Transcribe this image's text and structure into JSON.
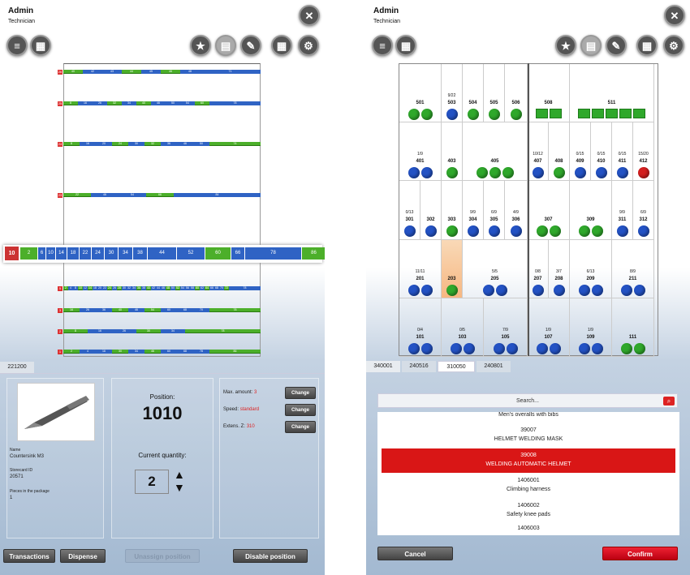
{
  "left": {
    "user": {
      "name": "Admin",
      "role": "Technician"
    },
    "shelf_labels": [
      "26",
      "25",
      "24",
      "23",
      "5",
      "3",
      "2",
      "1"
    ],
    "shelves": [
      {
        "level": "26",
        "segs": [
          "40",
          "42",
          "43",
          "44",
          "45",
          "46",
          "48",
          "71"
        ]
      },
      {
        "level": "25",
        "segs": [
          "8",
          "16",
          "26",
          "32",
          "34",
          "40",
          "46",
          "50",
          "54",
          "60",
          "78"
        ]
      },
      {
        "level": "24",
        "segs": [
          "8",
          "16",
          "20",
          "24",
          "30",
          "32",
          "36",
          "46",
          "50",
          "74"
        ]
      },
      {
        "level": "23",
        "segs": [
          "22",
          "46",
          "54",
          "66",
          "84"
        ]
      },
      {
        "level": "5",
        "segs": [
          "2",
          "4",
          "8",
          "10",
          "12",
          "14",
          "18",
          "20",
          "22",
          "24",
          "26",
          "28",
          "30",
          "32",
          "34",
          "36",
          "38",
          "40",
          "42",
          "44",
          "46",
          "48",
          "50",
          "52",
          "54",
          "56",
          "58",
          "60",
          "62",
          "64",
          "66",
          "68",
          "70",
          "72",
          "78"
        ]
      },
      {
        "level": "3",
        "segs": [
          "16",
          "26",
          "36",
          "40",
          "46",
          "54",
          "60",
          "68",
          "70",
          "78"
        ]
      },
      {
        "level": "2",
        "segs": [
          "8",
          "16",
          "26",
          "30",
          "34",
          "78"
        ]
      },
      {
        "level": "1",
        "segs": [
          "2",
          "4",
          "16",
          "30",
          "34",
          "46",
          "60",
          "68",
          "78",
          "86"
        ]
      }
    ],
    "zoom": {
      "level": "10",
      "segs": [
        "2",
        "6",
        "10",
        "14",
        "18",
        "22",
        "24",
        "30",
        "34",
        "38",
        "44",
        "52",
        "60",
        "66",
        "78",
        "86"
      ]
    },
    "tab": "221200",
    "item": {
      "name_label": "Name",
      "name": "Countersink M3",
      "storecard_label": "Storecard ID",
      "storecard": "20571",
      "pieces_label": "Pieces in the package",
      "pieces": "1"
    },
    "position_label": "Position:",
    "position": "1010",
    "quantity_label": "Current quantity:",
    "quantity": "2",
    "settings": [
      {
        "label": "Max. amount:",
        "value": "3",
        "button": "Change"
      },
      {
        "label": "Speed:",
        "value": "standard",
        "button": "Change"
      },
      {
        "label": "Extens. Z:",
        "value": "310",
        "button": "Change"
      }
    ],
    "buttons": {
      "transactions": "Transactions",
      "dispense": "Dispense",
      "unassign": "Unassign position",
      "disable": "Disable position"
    }
  },
  "right": {
    "user": {
      "name": "Admin",
      "role": "Technician"
    },
    "tabs": [
      "340001",
      "240516",
      "310050",
      "240801"
    ],
    "search_placeholder": "Search...",
    "list": [
      {
        "line1": "Men's overalls with bibs"
      },
      {
        "line1": "39007",
        "line2": "HELMET WELDING MASK"
      },
      {
        "line1": "39008",
        "line2": "WELDING AUTOMATIC HELMET",
        "selected": true
      },
      {
        "line1": "1406001",
        "line2": "Climbing harness"
      },
      {
        "line1": "1406002",
        "line2": "Safety knee pads"
      },
      {
        "line1": "1406003"
      }
    ],
    "buttons": {
      "cancel": "Cancel",
      "confirm": "Confirm"
    },
    "rows": [
      {
        "cells": [
          {
            "lb": "501",
            "d": "gg",
            "w": 52
          },
          {
            "fr": "9/22",
            "lb": "503",
            "d": "b",
            "w": 26
          },
          {
            "lb": "504",
            "d": "g",
            "w": 26
          },
          {
            "lb": "505",
            "d": "g",
            "w": 26
          },
          {
            "lb": "506",
            "d": "g",
            "w": 28
          },
          {
            "lb": "508",
            "sq": 2,
            "w": 52
          },
          {
            "lb": "511",
            "sq": 5,
            "w": 104
          }
        ]
      },
      {
        "cells": [
          {
            "fr": "1/9",
            "frr": true,
            "lb": "401",
            "d": "bb",
            "w": 52
          },
          {
            "lb": "403",
            "d": "g",
            "w": 26
          },
          {
            "lb": "405",
            "d": "ggg",
            "w": 80
          },
          {
            "fr": "10/12",
            "lb": "407",
            "d": "b",
            "w": 26
          },
          {
            "lb": "408",
            "d": "g",
            "w": 26
          },
          {
            "fr": "0/15",
            "frr": true,
            "lb": "409",
            "d": "b",
            "w": 26
          },
          {
            "fr": "0/15",
            "frr": true,
            "lb": "410",
            "d": "b",
            "w": 26
          },
          {
            "fr": "0/15",
            "frr": true,
            "lb": "411",
            "d": "b",
            "w": 26
          },
          {
            "fr": "15/20",
            "lb": "412",
            "d": "r",
            "w": 26
          }
        ]
      },
      {
        "cells": [
          {
            "fr": "0/13",
            "frr": true,
            "lb": "301",
            "d": "b",
            "w": 26
          },
          {
            "lb": "302",
            "d": "b",
            "w": 26
          },
          {
            "lb": "303",
            "d": "g",
            "w": 26
          },
          {
            "fr": "9/9",
            "lb": "304",
            "d": "b",
            "w": 26
          },
          {
            "fr": "6/9",
            "lb": "305",
            "d": "b",
            "w": 26
          },
          {
            "fr": "4/9",
            "lb": "306",
            "d": "b",
            "w": 28
          },
          {
            "lb": "307",
            "d": "gg",
            "w": 52
          },
          {
            "lb": "309",
            "d": "gg",
            "w": 52
          },
          {
            "fr": "9/9",
            "lb": "311",
            "d": "b",
            "w": 26
          },
          {
            "fr": "6/9",
            "lb": "312",
            "d": "b",
            "w": 26
          }
        ]
      },
      {
        "cells": [
          {
            "fr": "11/11",
            "lb": "201",
            "d": "bb",
            "w": 52
          },
          {
            "lb": "203",
            "d": "g",
            "w": 26,
            "hl": true
          },
          {
            "fr": "5/5",
            "lb": "205",
            "d": "bb",
            "w": 80
          },
          {
            "fr": "0/8",
            "frr": true,
            "lb": "207",
            "d": "b",
            "w": 26
          },
          {
            "fr": "3/7",
            "lb": "208",
            "d": "b",
            "w": 26
          },
          {
            "fr": "6/13",
            "frr": true,
            "lb": "209",
            "d": "bb",
            "w": 52
          },
          {
            "fr": "8/9",
            "lb": "211",
            "d": "bb",
            "w": 52
          }
        ]
      },
      {
        "cells": [
          {
            "fr": "0/4",
            "frr": true,
            "lb": "101",
            "d": "bb",
            "w": 52
          },
          {
            "fr": "0/5",
            "frr": true,
            "lb": "103",
            "d": "bb",
            "w": 52
          },
          {
            "fr": "7/9",
            "lb": "105",
            "d": "bb",
            "w": 54
          },
          {
            "fr": "1/9",
            "frr": true,
            "lb": "107",
            "d": "bb",
            "w": 52
          },
          {
            "fr": "1/9",
            "frr": true,
            "lb": "109",
            "d": "bb",
            "w": 52
          },
          {
            "lb": "111",
            "d": "gg",
            "w": 52
          }
        ]
      }
    ]
  }
}
